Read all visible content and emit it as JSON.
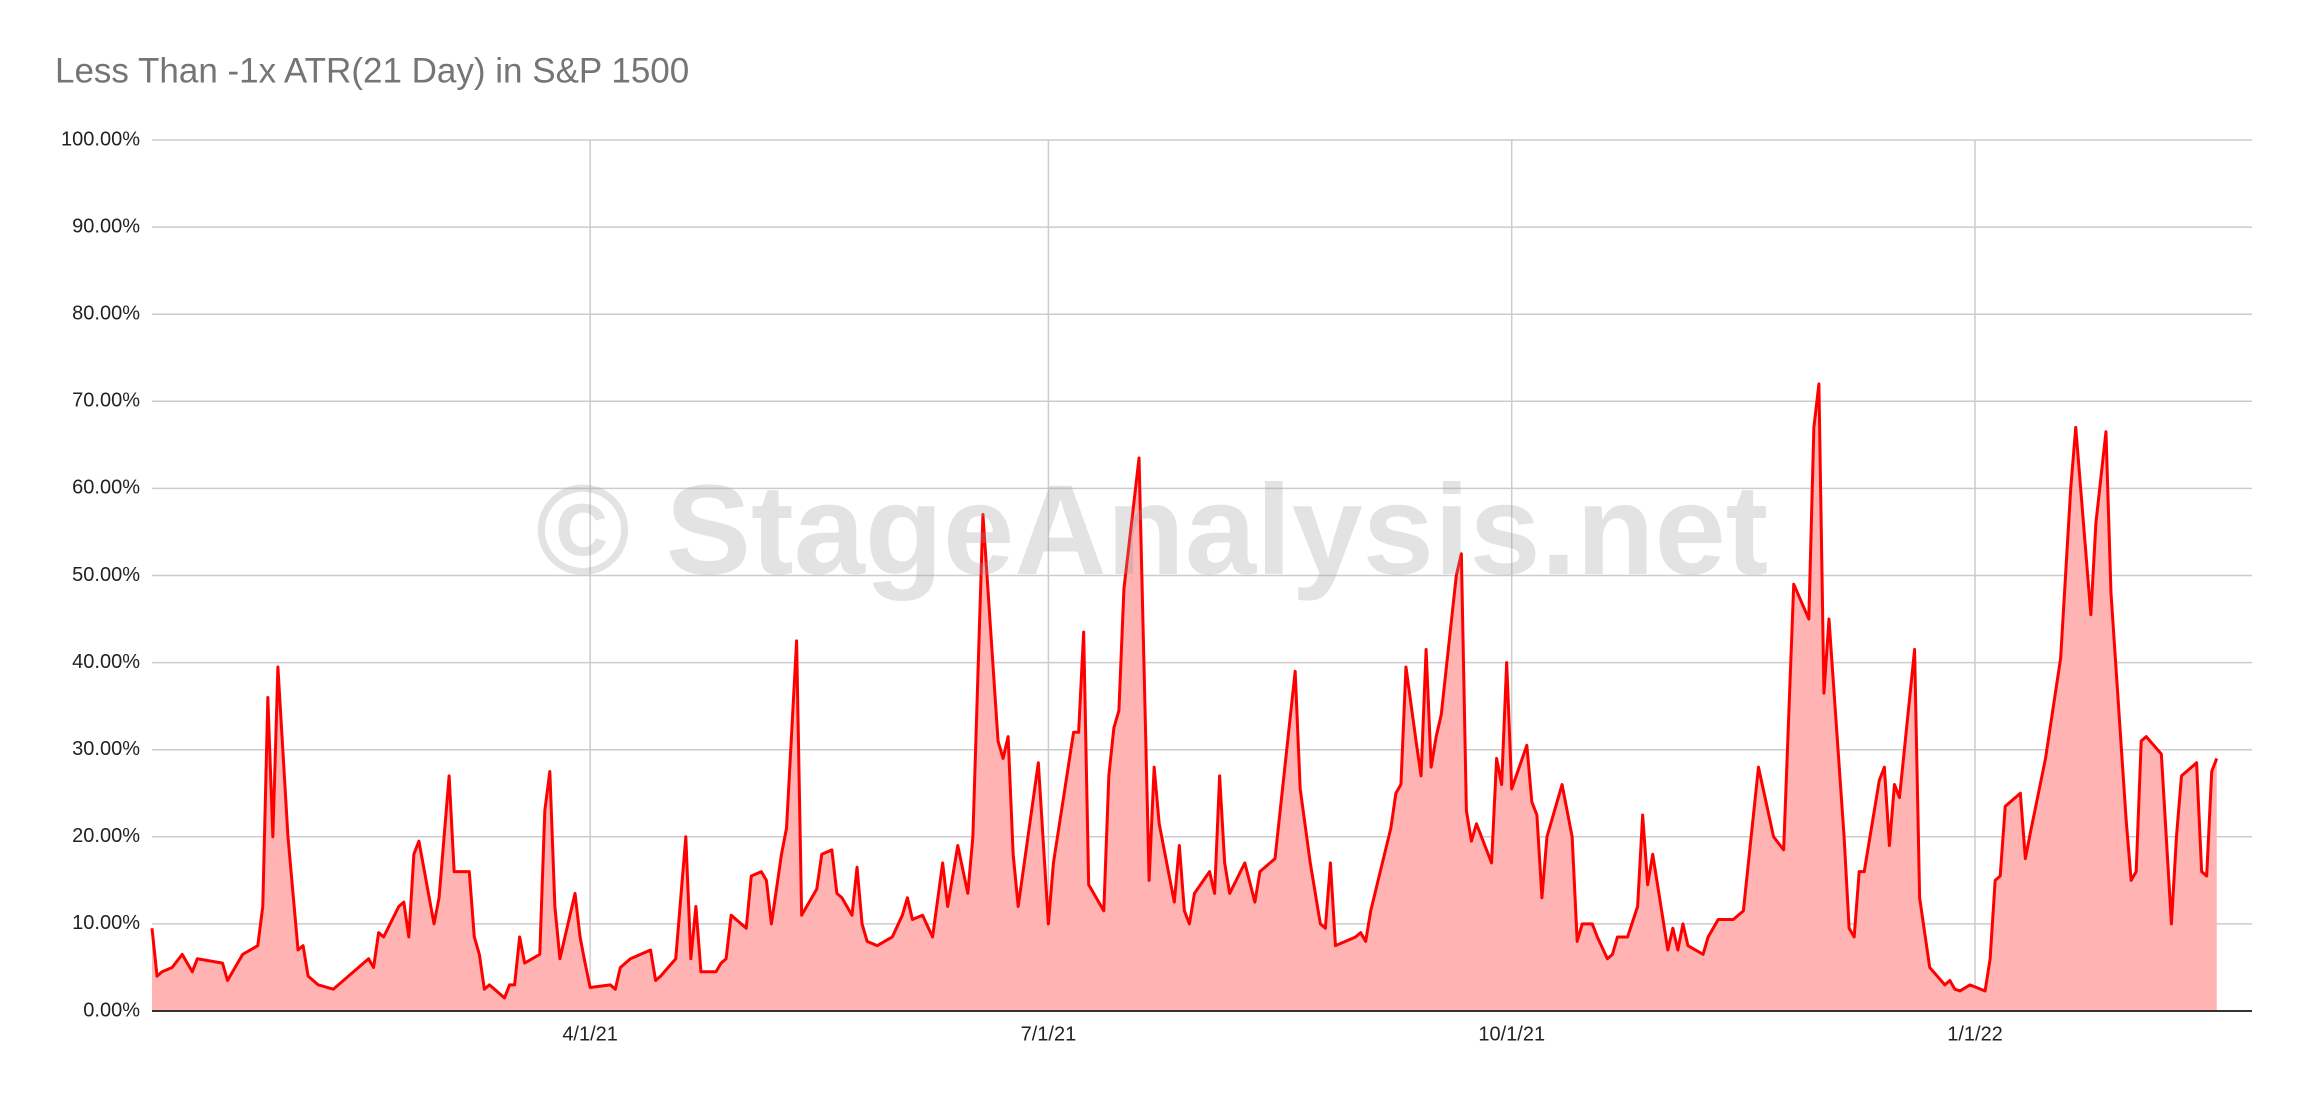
{
  "chart_data": {
    "type": "area",
    "title": "Less Than -1x ATR(21 Day) in S&P 1500",
    "watermark": "© StageAnalysis.net",
    "color": "#ff0000",
    "fill_color": "#ffb3b3",
    "grid": true,
    "xlim": [
      "1/4/21",
      "2/25/22"
    ],
    "xticks": [
      "4/1/21",
      "7/1/21",
      "10/1/21",
      "1/1/22"
    ],
    "ylim": [
      0,
      100
    ],
    "yticks": [
      {
        "value": 0,
        "label": "0.00%"
      },
      {
        "value": 10,
        "label": "10.00%"
      },
      {
        "value": 20,
        "label": "20.00%"
      },
      {
        "value": 30,
        "label": "30.00%"
      },
      {
        "value": 40,
        "label": "40.00%"
      },
      {
        "value": 50,
        "label": "50.00%"
      },
      {
        "value": 60,
        "label": "60.00%"
      },
      {
        "value": 70,
        "label": "70.00%"
      },
      {
        "value": 80,
        "label": "80.00%"
      },
      {
        "value": 90,
        "label": "90.00%"
      },
      {
        "value": 100,
        "label": "100.00%"
      }
    ],
    "x": [
      "1/4/21",
      "1/5/21",
      "1/6/21",
      "1/8/21",
      "1/10/21",
      "1/12/21",
      "1/13/21",
      "1/18/21",
      "1/19/21",
      "1/22/21",
      "1/25/21",
      "1/26/21",
      "1/27/21",
      "1/28/21",
      "1/29/21",
      "1/31/21",
      "2/2/21",
      "2/3/21",
      "2/4/21",
      "2/6/21",
      "2/9/21",
      "2/16/21",
      "2/17/21",
      "2/18/21",
      "2/19/21",
      "2/22/21",
      "2/23/21",
      "2/24/21",
      "2/25/21",
      "2/26/21",
      "3/1/21",
      "3/2/21",
      "3/4/21",
      "3/5/21",
      "3/8/21",
      "3/9/21",
      "3/10/21",
      "3/11/21",
      "3/12/21",
      "3/15/21",
      "3/16/21",
      "3/17/21",
      "3/18/21",
      "3/19/21",
      "3/22/21",
      "3/23/21",
      "3/24/21",
      "3/25/21",
      "3/26/21",
      "3/29/21",
      "3/30/21",
      "3/31/21",
      "4/1/21",
      "4/5/21",
      "4/6/21",
      "4/7/21",
      "4/9/21",
      "4/13/21",
      "4/14/21",
      "4/15/21",
      "4/18/21",
      "4/20/21",
      "4/21/21",
      "4/22/21",
      "4/23/21",
      "4/26/21",
      "4/27/21",
      "4/28/21",
      "4/29/21",
      "5/2/21",
      "5/3/21",
      "5/5/21",
      "5/6/21",
      "5/7/21",
      "5/9/21",
      "5/10/21",
      "5/12/21",
      "5/13/21",
      "5/16/21",
      "5/17/21",
      "5/19/21",
      "5/20/21",
      "5/21/21",
      "5/23/21",
      "5/24/21",
      "5/25/21",
      "5/26/21",
      "5/28/21",
      "5/31/21",
      "6/2/21",
      "6/3/21",
      "6/4/21",
      "6/6/21",
      "6/8/21",
      "6/10/21",
      "6/11/21",
      "6/13/21",
      "6/15/21",
      "6/16/21",
      "6/18/21",
      "6/21/21",
      "6/22/21",
      "6/23/21",
      "6/24/21",
      "6/25/21",
      "6/29/21",
      "7/1/21",
      "7/2/21",
      "7/6/21",
      "7/7/21",
      "7/8/21",
      "7/9/21",
      "7/12/21",
      "7/13/21",
      "7/14/21",
      "7/15/21",
      "7/16/21",
      "7/19/21",
      "7/21/21",
      "7/22/21",
      "7/23/21",
      "7/26/21",
      "7/27/21",
      "7/28/21",
      "7/29/21",
      "7/30/21",
      "8/2/21",
      "8/3/21",
      "8/4/21",
      "8/5/21",
      "8/6/21",
      "8/9/21",
      "8/11/21",
      "8/12/21",
      "8/15/21",
      "8/19/21",
      "8/20/21",
      "8/22/21",
      "8/24/21",
      "8/25/21",
      "8/26/21",
      "8/27/21",
      "8/31/21",
      "9/1/21",
      "9/2/21",
      "9/3/21",
      "9/7/21",
      "9/8/21",
      "9/9/21",
      "9/10/21",
      "9/12/21",
      "9/13/21",
      "9/14/21",
      "9/15/21",
      "9/16/21",
      "9/17/21",
      "9/20/21",
      "9/21/21",
      "9/22/21",
      "9/23/21",
      "9/24/21",
      "9/27/21",
      "9/28/21",
      "9/29/21",
      "9/30/21",
      "10/1/21",
      "10/4/21",
      "10/5/21",
      "10/6/21",
      "10/7/21",
      "10/8/21",
      "10/11/21",
      "10/13/21",
      "10/14/21",
      "10/15/21",
      "10/17/21",
      "10/18/21",
      "10/20/21",
      "10/21/21",
      "10/22/21",
      "10/24/21",
      "10/26/21",
      "10/27/21",
      "10/28/21",
      "10/29/21",
      "11/1/21",
      "11/2/21",
      "11/3/21",
      "11/4/21",
      "11/5/21",
      "11/8/21",
      "11/9/21",
      "11/11/21",
      "11/14/21",
      "11/16/21",
      "11/19/21",
      "11/22/21",
      "11/24/21",
      "11/26/21",
      "11/29/21",
      "11/30/21",
      "12/1/21",
      "12/2/21",
      "12/3/21",
      "12/6/21",
      "12/7/21",
      "12/8/21",
      "12/9/21",
      "12/10/21",
      "12/13/21",
      "12/14/21",
      "12/15/21",
      "12/16/21",
      "12/17/21",
      "12/20/21",
      "12/21/21",
      "12/23/21",
      "12/26/21",
      "12/27/21",
      "12/28/21",
      "12/29/21",
      "12/31/21",
      "1/3/22",
      "1/4/22",
      "1/5/22",
      "1/6/22",
      "1/7/22",
      "1/10/22",
      "1/11/22",
      "1/12/22",
      "1/15/22",
      "1/18/22",
      "1/20/22",
      "1/21/22",
      "1/24/22",
      "1/25/22",
      "1/27/22",
      "1/28/22",
      "1/31/22",
      "2/1/22",
      "2/2/22",
      "2/3/22",
      "2/4/22",
      "2/7/22",
      "2/9/22",
      "2/10/22",
      "2/11/22",
      "2/14/22",
      "2/15/22",
      "2/16/22",
      "2/17/22",
      "2/18/22"
    ],
    "values": [
      9.5,
      4,
      4.5,
      5,
      6.5,
      4.5,
      6,
      5.5,
      3.5,
      6.5,
      7.5,
      12,
      36,
      20,
      39.5,
      20,
      7,
      7.5,
      4,
      3,
      2.5,
      6,
      5,
      9,
      8.5,
      12,
      12.5,
      8.5,
      18,
      19.5,
      10,
      13,
      27,
      16,
      16,
      8.5,
      6.5,
      2.5,
      3,
      1.5,
      3,
      3,
      8.5,
      5.5,
      6.5,
      23,
      27.5,
      12,
      6,
      13.5,
      8.5,
      5.5,
      2.7,
      3,
      2.5,
      5,
      6,
      7,
      3.5,
      4,
      6,
      20,
      6,
      12,
      4.5,
      4.5,
      5.5,
      6,
      11,
      9.5,
      15.5,
      16,
      15,
      10,
      18,
      21,
      42.5,
      11,
      14,
      18,
      18.5,
      13.5,
      13,
      11,
      16.5,
      10,
      8,
      7.5,
      8.5,
      11,
      13,
      10.5,
      11,
      8.5,
      17,
      12,
      19,
      13.5,
      20,
      57,
      31,
      29,
      31.5,
      18,
      12,
      28.5,
      10,
      17,
      32,
      32,
      43.5,
      14.5,
      11.5,
      27,
      32.5,
      34.5,
      48.5,
      63.5,
      15,
      28,
      21.5,
      12.5,
      19,
      11.5,
      10,
      13.5,
      16,
      13.5,
      27,
      17,
      13.5,
      17,
      12.5,
      16,
      17.5,
      39,
      25.5,
      17,
      10,
      9.5,
      17,
      7.5,
      8.5,
      9,
      8,
      11.5,
      21,
      25,
      26,
      39.5,
      31,
      27,
      41.5,
      28,
      31.5,
      34,
      50,
      52.5,
      23,
      19.5,
      21.5,
      17,
      29,
      26,
      40,
      25.5,
      30.5,
      24,
      22.5,
      13,
      20,
      26,
      20,
      8,
      10,
      10,
      8.5,
      6,
      6.5,
      8.5,
      8.5,
      12,
      22.5,
      14.5,
      18,
      7,
      9.5,
      7,
      10,
      7.5,
      6.5,
      8.5,
      10.5,
      10.5,
      11.5,
      28,
      20,
      18.5,
      49,
      45,
      67,
      72,
      36.5,
      45,
      20,
      9.5,
      8.5,
      16,
      16,
      26.5,
      28,
      19,
      26,
      24.5,
      41.5,
      13,
      5,
      3,
      3.5,
      2.5,
      2.3,
      3,
      2.3,
      6,
      15,
      15.5,
      23.5,
      25,
      17.5,
      20.5,
      29,
      40.5,
      60,
      67,
      45.5,
      56,
      66.5,
      48,
      22,
      15,
      16,
      31,
      31.5,
      29.5,
      10,
      20,
      27,
      28.5,
      16,
      15.5,
      27.5,
      29
    ]
  }
}
